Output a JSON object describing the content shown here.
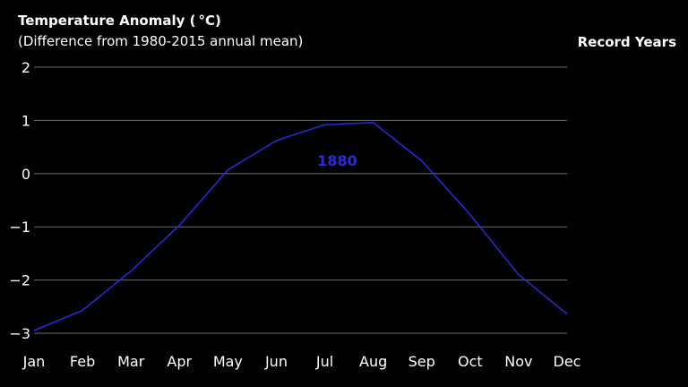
{
  "chart_data": {
    "type": "line",
    "title": "Temperature Anomaly ( °C)",
    "subtitle": "(Difference from 1980-2015 annual mean)",
    "legend_title": "Record Years",
    "xlabel": "",
    "ylabel": "",
    "categories": [
      "Jan",
      "Feb",
      "Mar",
      "Apr",
      "May",
      "Jun",
      "Jul",
      "Aug",
      "Sep",
      "Oct",
      "Nov",
      "Dec"
    ],
    "ylim": [
      -3,
      2
    ],
    "yticks": [
      2,
      1,
      0,
      -1,
      -2,
      -3
    ],
    "ytick_labels": [
      "2",
      "1",
      "0",
      "−1",
      "−2",
      "−3"
    ],
    "grid": true,
    "series": [
      {
        "name": "1880",
        "color": "#2a2ae0",
        "values": [
          -2.95,
          -2.57,
          -1.83,
          -0.97,
          0.07,
          0.62,
          0.92,
          0.96,
          0.24,
          -0.77,
          -1.9,
          -2.64
        ],
        "label_at": "Jul"
      }
    ]
  }
}
